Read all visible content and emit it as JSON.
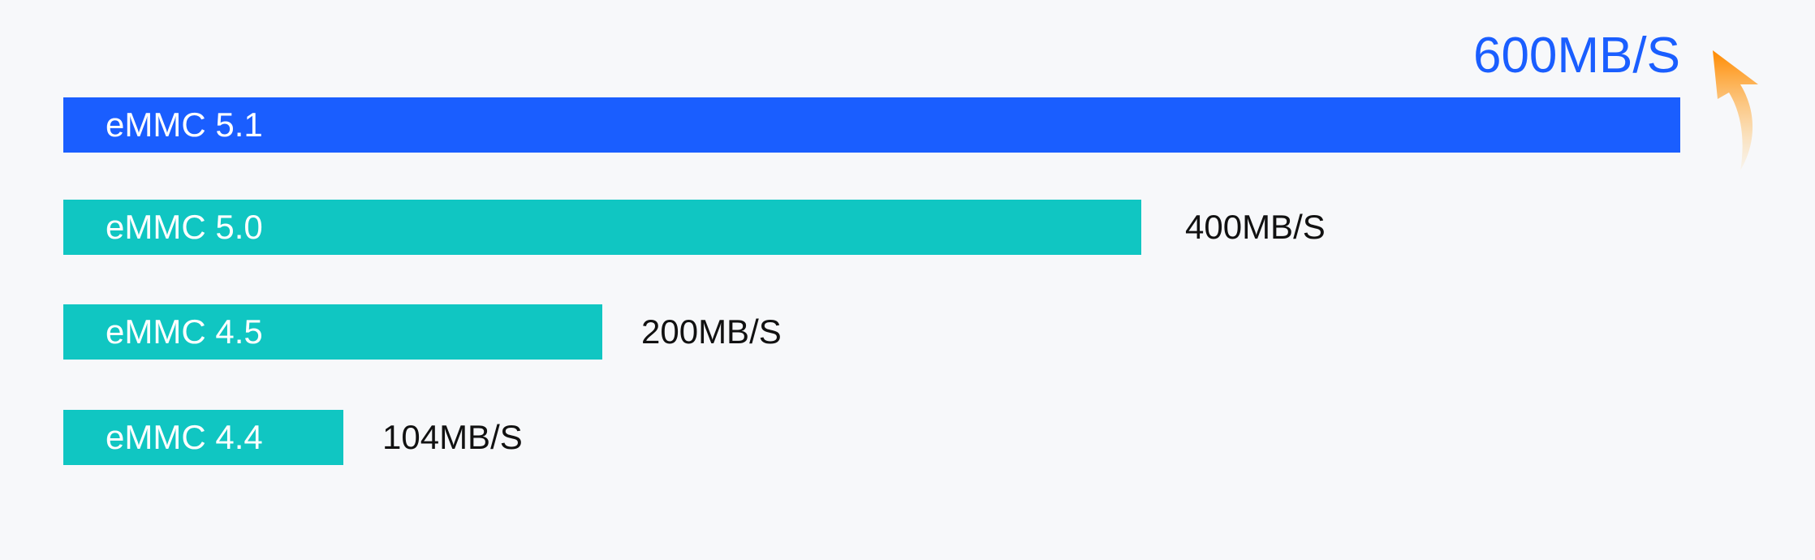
{
  "chart_data": {
    "type": "bar",
    "orientation": "horizontal",
    "categories": [
      "eMMC 5.1",
      "eMMC 5.0",
      "eMMC 4.5",
      "eMMC 4.4"
    ],
    "values": [
      600,
      400,
      200,
      104
    ],
    "value_labels": [
      "600MB/S",
      "400MB/S",
      "200MB/S",
      "104MB/S"
    ],
    "xlim": [
      0,
      600
    ],
    "grid": false,
    "legend": "none",
    "highlight_index": 0
  },
  "colors": {
    "highlight_bar": "#1a5eff",
    "bar": "#10c6c2",
    "highlight_text": "#1a5eff",
    "text": "#111111",
    "bar_text": "#ffffff",
    "arrow_top": "#ff8a00",
    "arrow_bottom": "#ffc870"
  },
  "icons": {
    "arrow": "curved-up-arrow-icon"
  }
}
